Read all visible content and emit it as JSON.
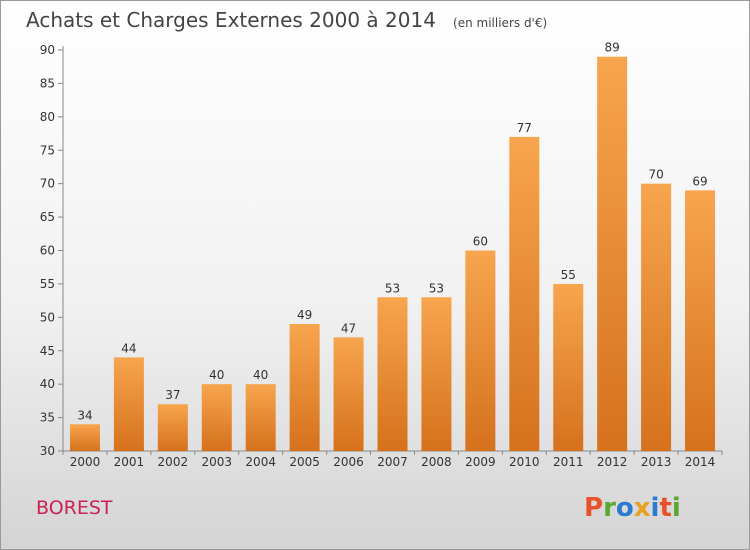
{
  "chart_data": {
    "type": "bar",
    "title": "Achats et Charges Externes 2000 à 2014",
    "subtitle": "(en milliers d'€)",
    "categories": [
      "2000",
      "2001",
      "2002",
      "2003",
      "2004",
      "2005",
      "2006",
      "2007",
      "2008",
      "2009",
      "2010",
      "2011",
      "2012",
      "2013",
      "2014"
    ],
    "values": [
      34,
      44,
      37,
      40,
      40,
      49,
      47,
      53,
      53,
      60,
      77,
      55,
      89,
      70,
      69
    ],
    "data_labels": [
      "34",
      "44",
      "37",
      "40",
      "40",
      "49",
      "47",
      "53",
      "53",
      "60",
      "77",
      "55",
      "89",
      "70",
      "69"
    ],
    "y_ticks": [
      "30",
      "35",
      "40",
      "45",
      "50",
      "55",
      "60",
      "65",
      "70",
      "75",
      "80",
      "85",
      "90"
    ],
    "ylim": [
      30,
      90
    ],
    "grid": false,
    "legend": "none",
    "bar_color_top": "#f7a54e",
    "bar_color_bottom": "#d6711c"
  },
  "commune": "BOREST",
  "logo": {
    "text": "Proxiti",
    "colors": [
      "#e8522a",
      "#5aa832",
      "#2a7bd0",
      "#e8a020",
      "#2a7bd0",
      "#e8522a",
      "#5aa832"
    ]
  }
}
